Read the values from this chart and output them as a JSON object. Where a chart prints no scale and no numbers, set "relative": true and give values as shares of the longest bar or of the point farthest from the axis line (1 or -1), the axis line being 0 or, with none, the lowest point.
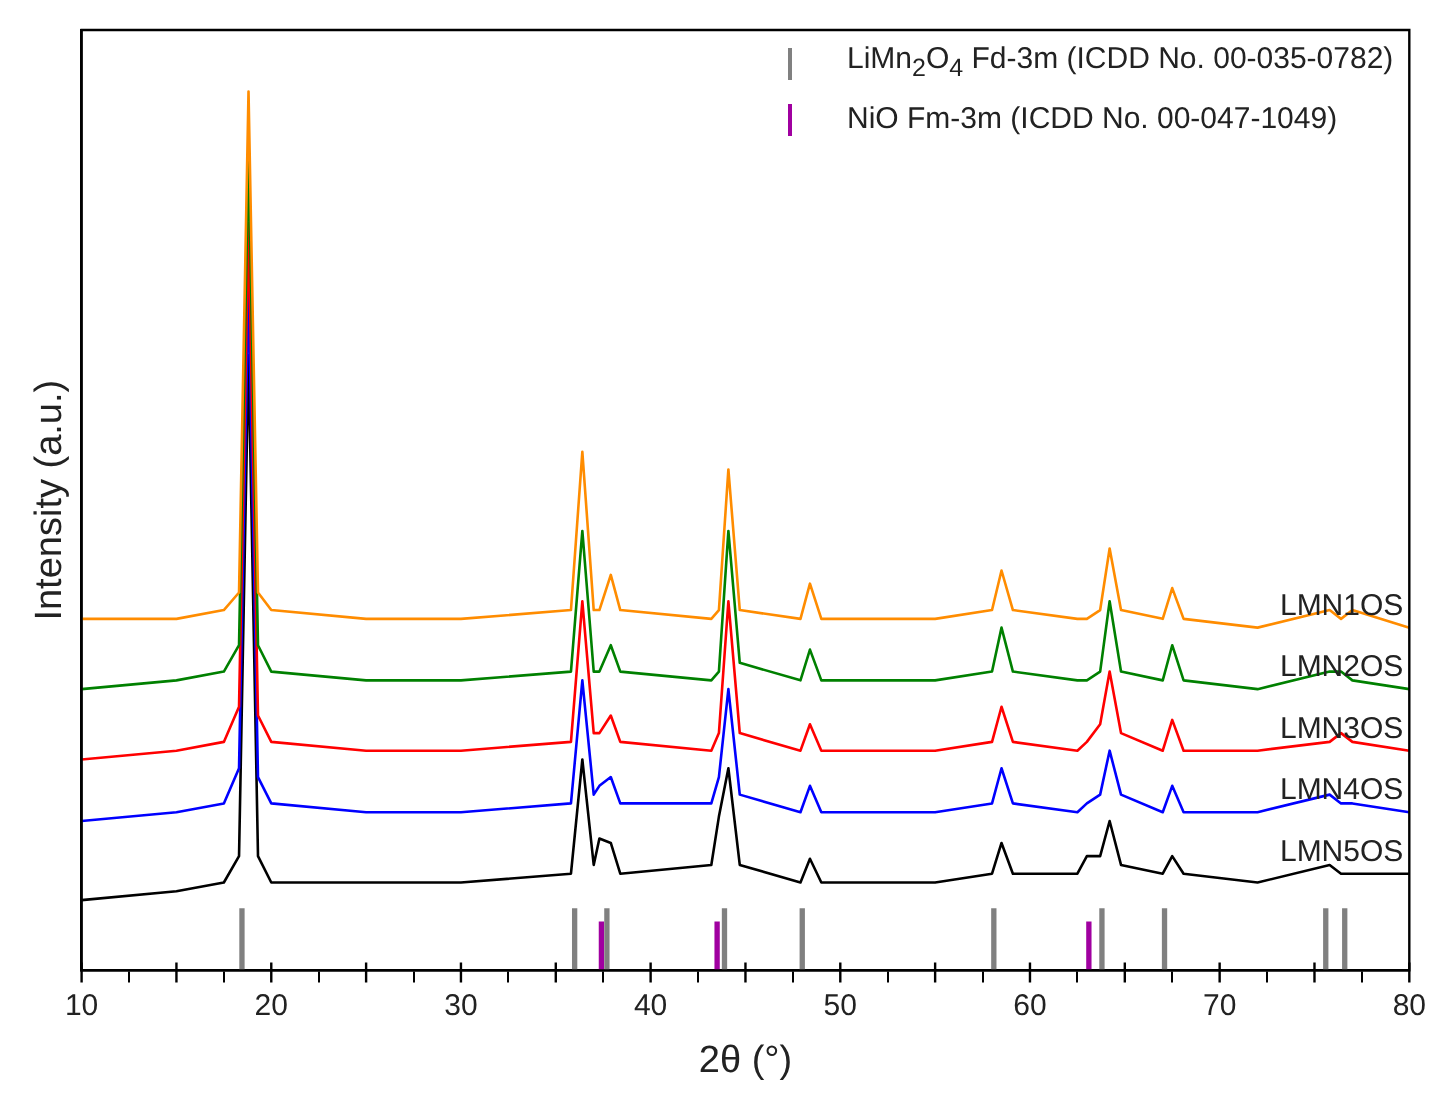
{
  "chart_data": {
    "type": "line",
    "relative": true,
    "xlabel": "2θ (°)",
    "ylabel": "Intensity (a.u.)",
    "xlim": [
      10,
      80
    ],
    "xticks": [
      10,
      {
        "value": 15,
        "label": null
      },
      20,
      {
        "value": 25,
        "label": null
      },
      30,
      {
        "value": 35,
        "label": null
      },
      40,
      {
        "value": 45,
        "label": null
      },
      50,
      {
        "value": 55,
        "label": null
      },
      60,
      {
        "value": 65,
        "label": null
      },
      70,
      {
        "value": 75,
        "label": null
      },
      80
    ],
    "grid": false,
    "legend": "top right",
    "x": [
      10,
      15,
      17.5,
      18.3,
      18.8,
      19.3,
      20,
      25,
      30,
      35.8,
      36.4,
      37.0,
      37.3,
      37.9,
      38.4,
      43.2,
      43.6,
      44.1,
      44.7,
      47.9,
      48.4,
      49,
      55,
      58,
      58.5,
      59.1,
      62.5,
      63,
      63.7,
      64.2,
      64.8,
      67,
      67.5,
      68.1,
      72,
      75.8,
      76.4,
      77,
      80
    ],
    "series": [
      {
        "name": "LMN1OS",
        "color": "#ff8c00",
        "values": [
          0.4,
          0.4,
          0.41,
          0.43,
          1.0,
          0.43,
          0.41,
          0.4,
          0.4,
          0.41,
          0.59,
          0.41,
          0.41,
          0.45,
          0.41,
          0.4,
          0.41,
          0.57,
          0.41,
          0.4,
          0.44,
          0.4,
          0.4,
          0.41,
          0.455,
          0.41,
          0.4,
          0.4,
          0.41,
          0.48,
          0.41,
          0.4,
          0.435,
          0.4,
          0.39,
          0.41,
          0.4,
          0.41,
          0.39
        ]
      },
      {
        "name": "LMN2OS",
        "color": "#008000",
        "values": [
          0.32,
          0.33,
          0.34,
          0.37,
          0.93,
          0.37,
          0.34,
          0.33,
          0.33,
          0.34,
          0.5,
          0.34,
          0.34,
          0.37,
          0.34,
          0.33,
          0.34,
          0.5,
          0.35,
          0.33,
          0.365,
          0.33,
          0.33,
          0.34,
          0.39,
          0.34,
          0.33,
          0.33,
          0.34,
          0.42,
          0.34,
          0.33,
          0.37,
          0.33,
          0.32,
          0.34,
          0.34,
          0.33,
          0.32
        ]
      },
      {
        "name": "LMN3OS",
        "color": "#ff0000",
        "values": [
          0.24,
          0.25,
          0.26,
          0.3,
          0.85,
          0.29,
          0.26,
          0.25,
          0.25,
          0.26,
          0.42,
          0.27,
          0.27,
          0.29,
          0.26,
          0.25,
          0.27,
          0.42,
          0.27,
          0.25,
          0.28,
          0.25,
          0.25,
          0.26,
          0.3,
          0.26,
          0.25,
          0.26,
          0.28,
          0.34,
          0.27,
          0.25,
          0.285,
          0.25,
          0.25,
          0.26,
          0.27,
          0.26,
          0.25
        ]
      },
      {
        "name": "LMN4OS",
        "color": "#0000ff",
        "values": [
          0.17,
          0.18,
          0.19,
          0.23,
          0.78,
          0.22,
          0.19,
          0.18,
          0.18,
          0.19,
          0.33,
          0.2,
          0.21,
          0.22,
          0.19,
          0.19,
          0.22,
          0.32,
          0.2,
          0.18,
          0.21,
          0.18,
          0.18,
          0.19,
          0.23,
          0.19,
          0.18,
          0.19,
          0.2,
          0.25,
          0.2,
          0.18,
          0.21,
          0.18,
          0.18,
          0.2,
          0.19,
          0.19,
          0.18
        ]
      },
      {
        "name": "LMN5OS",
        "color": "#000000",
        "values": [
          0.08,
          0.09,
          0.1,
          0.13,
          0.7,
          0.13,
          0.1,
          0.1,
          0.1,
          0.11,
          0.24,
          0.12,
          0.15,
          0.145,
          0.11,
          0.12,
          0.175,
          0.23,
          0.12,
          0.1,
          0.127,
          0.1,
          0.1,
          0.11,
          0.145,
          0.11,
          0.11,
          0.13,
          0.13,
          0.17,
          0.12,
          0.11,
          0.13,
          0.11,
          0.1,
          0.12,
          0.11,
          0.11,
          0.11
        ]
      },
      {
        "name": "LiMn$_{2}$O$_{4}$ Fd-3m (ICDD No. 00-035-0782)",
        "type": "bar",
        "color": "#808080",
        "x": [
          18.56,
          36.1,
          37.8,
          44.0,
          48.1,
          58.2,
          63.9,
          67.2,
          75.7,
          76.7
        ],
        "values": [
          0.07,
          0.07,
          0.07,
          0.07,
          0.07,
          0.07,
          0.07,
          0.07,
          0.07,
          0.07
        ]
      },
      {
        "name": "NiO Fm-3m (ICDD No. 00-047-1049)",
        "type": "bar",
        "color": "#a000a0",
        "x": [
          37.3,
          43.4,
          63.0
        ],
        "values": [
          0.055,
          0.055,
          0.055
        ]
      }
    ]
  }
}
